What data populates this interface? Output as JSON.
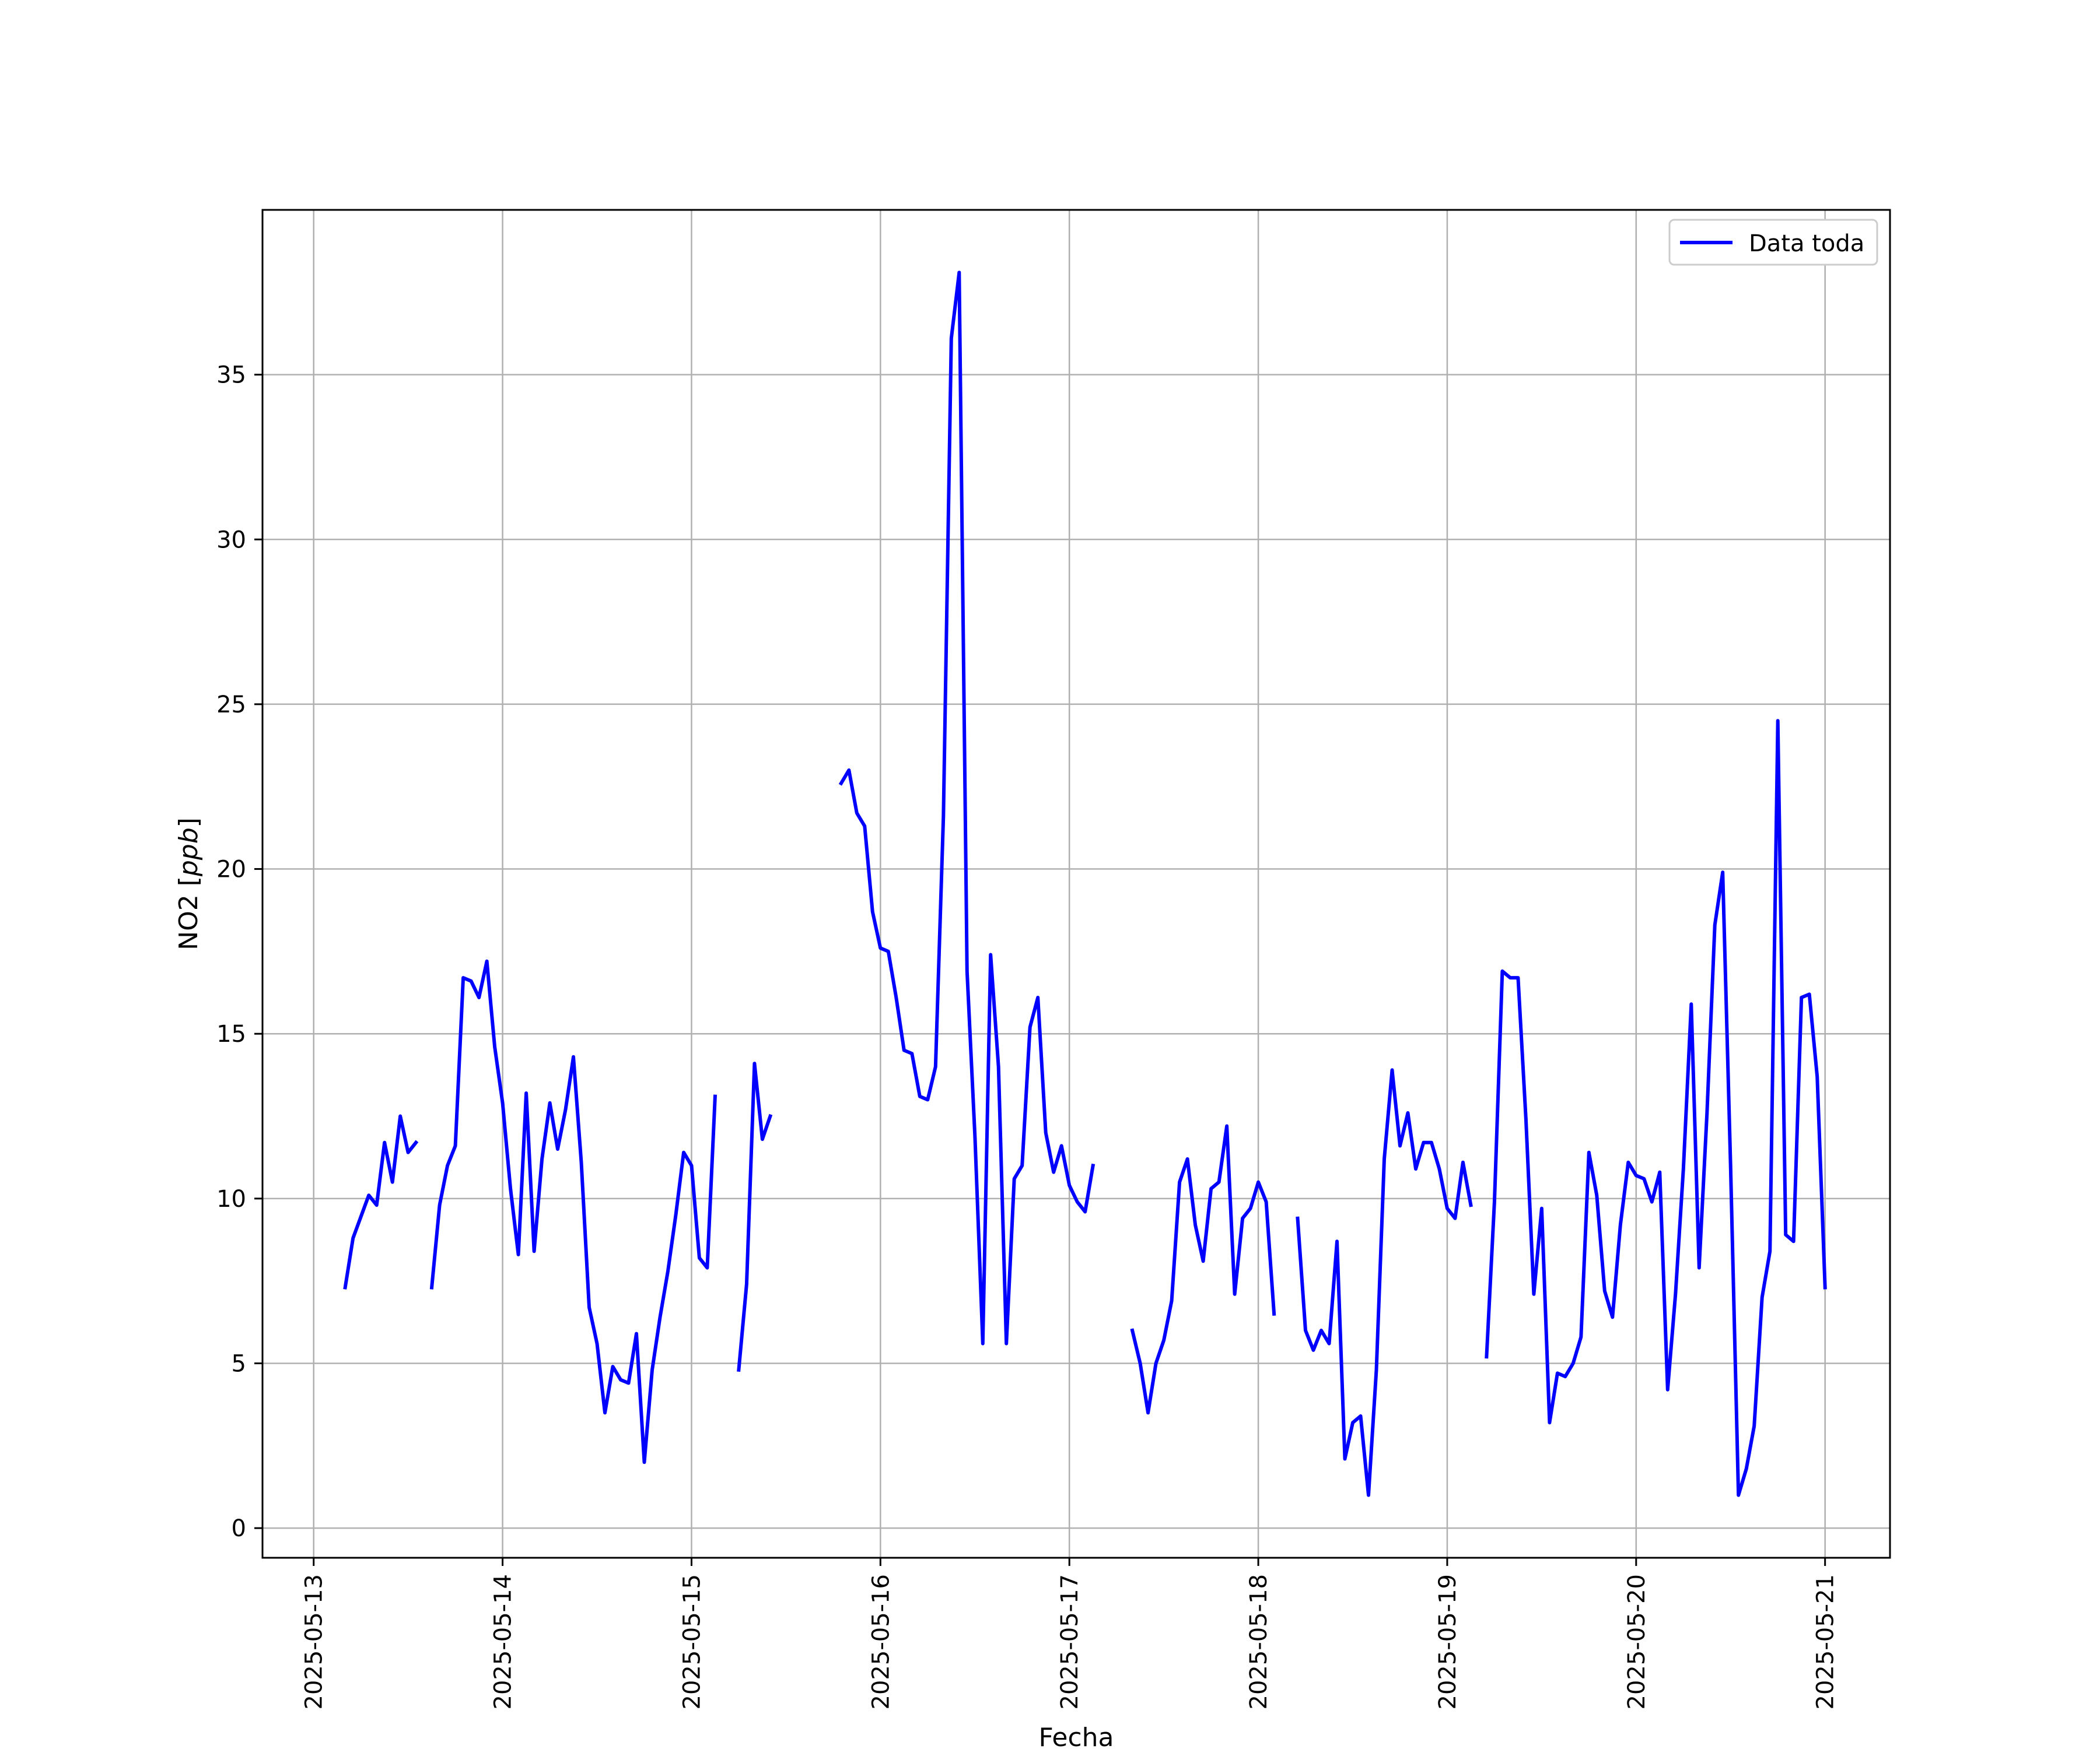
{
  "chart_data": {
    "type": "line",
    "xlabel": "Fecha",
    "ylabel_main": "NO2 [",
    "ylabel_unit": "ppb",
    "ylabel_close": "]",
    "x_tick_labels": [
      "2025-05-13",
      "2025-05-14",
      "2025-05-15",
      "2025-05-16",
      "2025-05-17",
      "2025-05-18",
      "2025-05-19",
      "2025-05-20",
      "2025-05-21"
    ],
    "y_ticks": [
      0,
      5,
      10,
      15,
      20,
      25,
      30,
      35
    ],
    "xlim": [
      "2025-05-12 17:30",
      "2025-05-21 08:15"
    ],
    "ylim": [
      -0.9,
      40
    ],
    "grid": true,
    "legend_position": "top-right",
    "series": [
      {
        "name": "Data toda",
        "color": "#0000ff",
        "segments": [
          [
            [
              "2025-05-13 04:00",
              7.3
            ],
            [
              "2025-05-13 05:00",
              8.8
            ],
            [
              "2025-05-13 07:00",
              10.1
            ],
            [
              "2025-05-13 08:00",
              9.8
            ],
            [
              "2025-05-13 09:00",
              11.7
            ],
            [
              "2025-05-13 10:00",
              10.5
            ],
            [
              "2025-05-13 11:00",
              12.5
            ],
            [
              "2025-05-13 12:00",
              11.4
            ],
            [
              "2025-05-13 13:00",
              11.7
            ]
          ],
          [
            [
              "2025-05-13 15:00",
              7.3
            ],
            [
              "2025-05-13 16:00",
              9.8
            ],
            [
              "2025-05-13 17:00",
              11.0
            ],
            [
              "2025-05-13 18:00",
              11.6
            ],
            [
              "2025-05-13 19:00",
              16.7
            ],
            [
              "2025-05-13 20:00",
              16.6
            ],
            [
              "2025-05-13 21:00",
              16.1
            ],
            [
              "2025-05-13 22:00",
              17.2
            ],
            [
              "2025-05-13 23:00",
              14.6
            ],
            [
              "2025-05-14 00:00",
              12.9
            ],
            [
              "2025-05-14 01:00",
              10.3
            ],
            [
              "2025-05-14 02:00",
              8.3
            ],
            [
              "2025-05-14 03:00",
              13.2
            ],
            [
              "2025-05-14 04:00",
              8.4
            ],
            [
              "2025-05-14 05:00",
              11.2
            ],
            [
              "2025-05-14 06:00",
              12.9
            ],
            [
              "2025-05-14 07:00",
              11.5
            ],
            [
              "2025-05-14 08:00",
              12.7
            ],
            [
              "2025-05-14 09:00",
              14.3
            ],
            [
              "2025-05-14 10:00",
              11.1
            ],
            [
              "2025-05-14 11:00",
              6.7
            ],
            [
              "2025-05-14 12:00",
              5.6
            ],
            [
              "2025-05-14 13:00",
              3.5
            ],
            [
              "2025-05-14 14:00",
              4.9
            ],
            [
              "2025-05-14 15:00",
              4.5
            ],
            [
              "2025-05-14 16:00",
              4.4
            ],
            [
              "2025-05-14 17:00",
              5.9
            ],
            [
              "2025-05-14 18:00",
              2.0
            ],
            [
              "2025-05-14 19:00",
              4.8
            ],
            [
              "2025-05-14 20:00",
              6.4
            ],
            [
              "2025-05-14 21:00",
              7.8
            ],
            [
              "2025-05-14 22:00",
              9.5
            ],
            [
              "2025-05-14 23:00",
              11.4
            ],
            [
              "2025-05-15 00:00",
              11.0
            ],
            [
              "2025-05-15 01:00",
              8.2
            ],
            [
              "2025-05-15 02:00",
              7.9
            ],
            [
              "2025-05-15 03:00",
              13.1
            ]
          ],
          [
            [
              "2025-05-15 06:00",
              4.8
            ],
            [
              "2025-05-15 07:00",
              7.4
            ],
            [
              "2025-05-15 08:00",
              14.1
            ],
            [
              "2025-05-15 09:00",
              11.8
            ],
            [
              "2025-05-15 10:00",
              12.5
            ]
          ],
          [
            [
              "2025-05-15 19:00",
              22.6
            ],
            [
              "2025-05-15 20:00",
              23.0
            ],
            [
              "2025-05-15 21:00",
              21.7
            ],
            [
              "2025-05-15 22:00",
              21.3
            ],
            [
              "2025-05-15 23:00",
              18.7
            ],
            [
              "2025-05-16 00:00",
              17.6
            ],
            [
              "2025-05-16 01:00",
              17.5
            ],
            [
              "2025-05-16 02:00",
              16.1
            ],
            [
              "2025-05-16 03:00",
              14.5
            ],
            [
              "2025-05-16 04:00",
              14.4
            ],
            [
              "2025-05-16 05:00",
              13.1
            ],
            [
              "2025-05-16 06:00",
              13.0
            ],
            [
              "2025-05-16 07:00",
              14.0
            ],
            [
              "2025-05-16 08:00",
              21.6
            ],
            [
              "2025-05-16 09:00",
              36.1
            ],
            [
              "2025-05-16 10:00",
              38.1
            ],
            [
              "2025-05-16 11:00",
              16.9
            ],
            [
              "2025-05-16 12:00",
              11.9
            ],
            [
              "2025-05-16 13:00",
              5.6
            ],
            [
              "2025-05-16 14:00",
              17.4
            ],
            [
              "2025-05-16 15:00",
              14.0
            ],
            [
              "2025-05-16 16:00",
              5.6
            ],
            [
              "2025-05-16 17:00",
              10.6
            ],
            [
              "2025-05-16 18:00",
              11.0
            ],
            [
              "2025-05-16 19:00",
              15.2
            ],
            [
              "2025-05-16 20:00",
              16.1
            ],
            [
              "2025-05-16 21:00",
              12.0
            ],
            [
              "2025-05-16 22:00",
              10.8
            ],
            [
              "2025-05-16 23:00",
              11.6
            ],
            [
              "2025-05-17 00:00",
              10.4
            ],
            [
              "2025-05-17 01:00",
              9.9
            ],
            [
              "2025-05-17 02:00",
              9.6
            ],
            [
              "2025-05-17 03:00",
              11.0
            ]
          ],
          [
            [
              "2025-05-17 08:00",
              6.0
            ],
            [
              "2025-05-17 09:00",
              5.0
            ],
            [
              "2025-05-17 10:00",
              3.5
            ],
            [
              "2025-05-17 11:00",
              5.0
            ],
            [
              "2025-05-17 12:00",
              5.7
            ],
            [
              "2025-05-17 13:00",
              6.9
            ],
            [
              "2025-05-17 14:00",
              10.5
            ],
            [
              "2025-05-17 15:00",
              11.2
            ],
            [
              "2025-05-17 16:00",
              9.2
            ],
            [
              "2025-05-17 17:00",
              8.1
            ],
            [
              "2025-05-17 18:00",
              10.3
            ],
            [
              "2025-05-17 19:00",
              10.5
            ],
            [
              "2025-05-17 20:00",
              12.2
            ],
            [
              "2025-05-17 21:00",
              7.1
            ],
            [
              "2025-05-17 22:00",
              9.4
            ],
            [
              "2025-05-17 23:00",
              9.7
            ],
            [
              "2025-05-18 00:00",
              10.5
            ],
            [
              "2025-05-18 01:00",
              9.9
            ],
            [
              "2025-05-18 02:00",
              6.5
            ]
          ],
          [
            [
              "2025-05-18 05:00",
              9.4
            ],
            [
              "2025-05-18 06:00",
              6.0
            ],
            [
              "2025-05-18 07:00",
              5.4
            ],
            [
              "2025-05-18 08:00",
              6.0
            ],
            [
              "2025-05-18 09:00",
              5.6
            ],
            [
              "2025-05-18 10:00",
              8.7
            ],
            [
              "2025-05-18 11:00",
              2.1
            ],
            [
              "2025-05-18 12:00",
              3.2
            ],
            [
              "2025-05-18 13:00",
              3.4
            ],
            [
              "2025-05-18 14:00",
              1.0
            ],
            [
              "2025-05-18 15:00",
              4.8
            ],
            [
              "2025-05-18 16:00",
              11.2
            ],
            [
              "2025-05-18 17:00",
              13.9
            ],
            [
              "2025-05-18 18:00",
              11.6
            ],
            [
              "2025-05-18 19:00",
              12.6
            ],
            [
              "2025-05-18 20:00",
              10.9
            ],
            [
              "2025-05-18 21:00",
              11.7
            ],
            [
              "2025-05-18 22:00",
              11.7
            ],
            [
              "2025-05-18 23:00",
              10.9
            ],
            [
              "2025-05-19 00:00",
              9.7
            ],
            [
              "2025-05-19 01:00",
              9.4
            ],
            [
              "2025-05-19 02:00",
              11.1
            ],
            [
              "2025-05-19 03:00",
              9.8
            ]
          ],
          [
            [
              "2025-05-19 05:00",
              5.2
            ],
            [
              "2025-05-19 06:00",
              9.9
            ],
            [
              "2025-05-19 07:00",
              16.9
            ],
            [
              "2025-05-19 08:00",
              16.7
            ],
            [
              "2025-05-19 09:00",
              16.7
            ],
            [
              "2025-05-19 10:00",
              12.4
            ],
            [
              "2025-05-19 11:00",
              7.1
            ],
            [
              "2025-05-19 12:00",
              9.7
            ],
            [
              "2025-05-19 13:00",
              3.2
            ],
            [
              "2025-05-19 14:00",
              4.7
            ],
            [
              "2025-05-19 15:00",
              4.6
            ],
            [
              "2025-05-19 16:00",
              5.0
            ],
            [
              "2025-05-19 17:00",
              5.8
            ],
            [
              "2025-05-19 18:00",
              11.4
            ],
            [
              "2025-05-19 19:00",
              10.1
            ],
            [
              "2025-05-19 20:00",
              7.2
            ],
            [
              "2025-05-19 21:00",
              6.4
            ],
            [
              "2025-05-19 22:00",
              9.2
            ],
            [
              "2025-05-19 23:00",
              11.1
            ],
            [
              "2025-05-20 00:00",
              10.7
            ],
            [
              "2025-05-20 01:00",
              10.6
            ],
            [
              "2025-05-20 02:00",
              9.9
            ],
            [
              "2025-05-20 03:00",
              10.8
            ],
            [
              "2025-05-20 04:00",
              4.2
            ],
            [
              "2025-05-20 05:00",
              7.1
            ],
            [
              "2025-05-20 06:00",
              10.9
            ],
            [
              "2025-05-20 07:00",
              15.9
            ],
            [
              "2025-05-20 08:00",
              7.9
            ],
            [
              "2025-05-20 09:00",
              12.6
            ],
            [
              "2025-05-20 10:00",
              18.3
            ],
            [
              "2025-05-20 11:00",
              19.9
            ],
            [
              "2025-05-20 12:00",
              11.0
            ],
            [
              "2025-05-20 13:00",
              1.0
            ],
            [
              "2025-05-20 14:00",
              1.8
            ],
            [
              "2025-05-20 15:00",
              3.1
            ],
            [
              "2025-05-20 16:00",
              7.0
            ],
            [
              "2025-05-20 17:00",
              8.4
            ],
            [
              "2025-05-20 18:00",
              24.5
            ],
            [
              "2025-05-20 19:00",
              8.9
            ],
            [
              "2025-05-20 20:00",
              8.7
            ],
            [
              "2025-05-20 21:00",
              16.1
            ],
            [
              "2025-05-20 22:00",
              16.2
            ],
            [
              "2025-05-20 23:00",
              13.7
            ],
            [
              "2025-05-21 00:00",
              7.3
            ]
          ]
        ]
      }
    ]
  }
}
